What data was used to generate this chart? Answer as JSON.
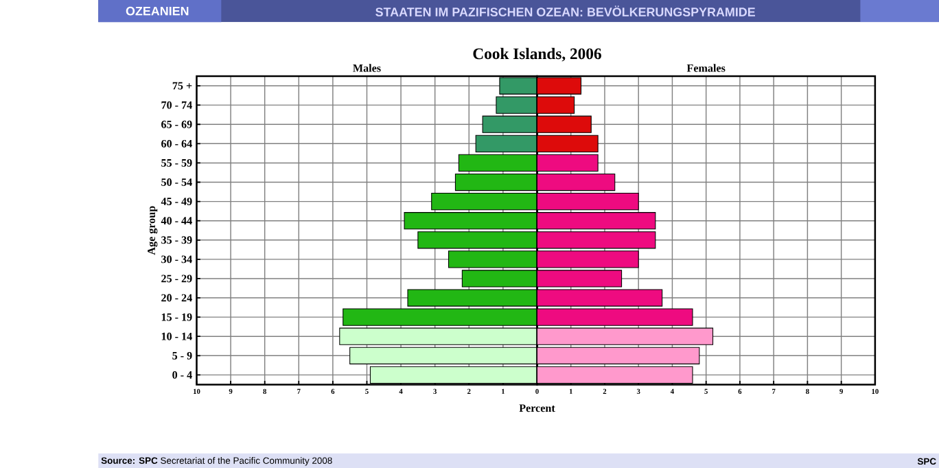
{
  "chart_data": [
    {
      "type": "bar",
      "orientation": "horizontal",
      "title": "Males",
      "xlabel": "Percent",
      "ylabel": "Age group",
      "annotations": [
        "OZEANIEN",
        "STAATEN IM PAZIFISCHEN OZEAN: BEVÖLKERUNGSPYRAMIDE",
        "Cook Islands, 2006",
        "**Source: SPC** Secretariat of the Pacific Community 2008",
        "SPC"
      ],
      "categories": [
        "75 +",
        "70 - 74",
        "65 - 69",
        "60 - 64",
        "55 - 59",
        "50 - 54",
        "45 - 49",
        "40 - 44",
        "35 - 39",
        "30 - 34",
        "25 - 29",
        "20 - 24",
        "15 - 19",
        "10 - 14",
        "5 - 9",
        "0 - 4"
      ],
      "values": [
        1.1,
        1.2,
        1.6,
        1.8,
        2.3,
        2.4,
        3.1,
        3.9,
        3.5,
        2.6,
        2.2,
        3.8,
        5.7,
        5.8,
        5.5,
        4.9
      ],
      "colors": [
        "#339966",
        "#339966",
        "#339966",
        "#339966",
        "#22b714",
        "#22b714",
        "#22b714",
        "#22b714",
        "#22b714",
        "#22b714",
        "#22b714",
        "#22b714",
        "#22b714",
        "#ccffcc",
        "#ccffcc",
        "#ccffcc"
      ],
      "xlim": [
        10,
        0
      ],
      "xticks": [
        10,
        9,
        8,
        7,
        6,
        5,
        4,
        3,
        2,
        1,
        0
      ],
      "grid": true
    },
    {
      "type": "bar",
      "orientation": "horizontal",
      "title": "Females",
      "tick_labels": "x",
      "categories": [
        null,
        null,
        null,
        null,
        null,
        null,
        null,
        null,
        null,
        null,
        null,
        null,
        null,
        null,
        null,
        null
      ],
      "values": [
        1.3,
        1.1,
        1.6,
        1.8,
        1.8,
        2.3,
        3.0,
        3.5,
        3.5,
        3.0,
        2.5,
        3.7,
        4.6,
        5.2,
        4.8,
        4.6
      ],
      "colors": [
        "#dd0b0b",
        "#dd0b0b",
        "#dd0b0b",
        "#dd0b0b",
        "#ee0b80",
        "#ee0b80",
        "#ee0b80",
        "#ee0b80",
        "#ee0b80",
        "#ee0b80",
        "#ee0b80",
        "#ee0b80",
        "#ee0b80",
        "#ff99cc",
        "#ff99cc",
        "#ff99cc"
      ],
      "xlim": [
        0,
        10
      ],
      "xticks": [
        1,
        2,
        3,
        4,
        5,
        6,
        7,
        8,
        9,
        10
      ],
      "grid": true
    }
  ]
}
